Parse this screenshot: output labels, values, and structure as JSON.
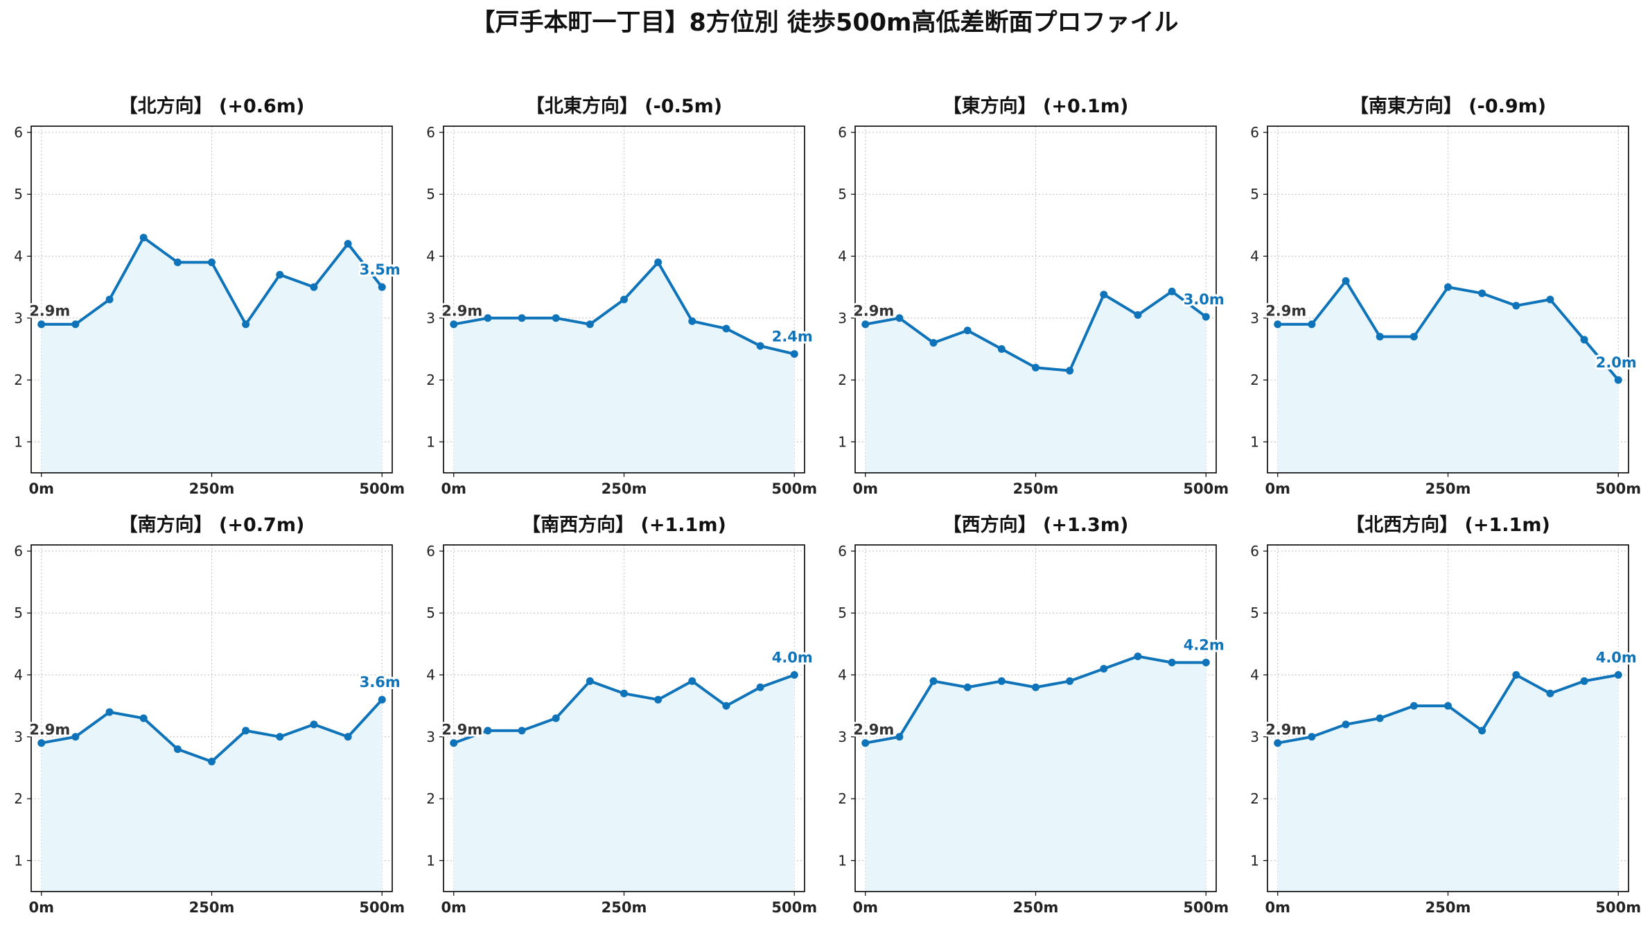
{
  "title": "【戸手本町一丁目】8方位別 徒歩500m高低差断面プロファイル",
  "colors": {
    "line": "#0e73b8",
    "fill": "#e8f6fc",
    "grid": "#c8c8c8"
  },
  "chart_data": [
    {
      "type": "area",
      "title": "【北方向】 (+0.6m)",
      "x": [
        0,
        50,
        100,
        150,
        200,
        250,
        300,
        350,
        400,
        450,
        500
      ],
      "y": [
        2.9,
        2.9,
        3.3,
        4.3,
        3.9,
        3.9,
        2.9,
        3.7,
        3.5,
        4.2,
        3.5
      ],
      "start_label": "2.9m",
      "end_label": "3.5m",
      "xticks": [
        "0m",
        "250m",
        "500m"
      ],
      "yticks": [
        "1",
        "2",
        "3",
        "4",
        "5",
        "6"
      ],
      "ylim": [
        0.5,
        6.1
      ],
      "xlim": [
        -15,
        515
      ],
      "grid": true
    },
    {
      "type": "area",
      "title": "【北東方向】 (-0.5m)",
      "x": [
        0,
        50,
        100,
        150,
        200,
        250,
        300,
        350,
        400,
        450,
        500
      ],
      "y": [
        2.9,
        3.0,
        3.0,
        3.0,
        2.9,
        3.3,
        3.9,
        2.95,
        2.83,
        2.55,
        2.42
      ],
      "start_label": "2.9m",
      "end_label": "2.4m",
      "xticks": [
        "0m",
        "250m",
        "500m"
      ],
      "yticks": [
        "1",
        "2",
        "3",
        "4",
        "5",
        "6"
      ],
      "ylim": [
        0.5,
        6.1
      ],
      "xlim": [
        -15,
        515
      ],
      "grid": true
    },
    {
      "type": "area",
      "title": "【東方向】 (+0.1m)",
      "x": [
        0,
        50,
        100,
        150,
        200,
        250,
        300,
        350,
        400,
        450,
        500
      ],
      "y": [
        2.9,
        3.0,
        2.6,
        2.8,
        2.5,
        2.2,
        2.15,
        3.38,
        3.05,
        3.43,
        3.02
      ],
      "start_label": "2.9m",
      "end_label": "3.0m",
      "xticks": [
        "0m",
        "250m",
        "500m"
      ],
      "yticks": [
        "1",
        "2",
        "3",
        "4",
        "5",
        "6"
      ],
      "ylim": [
        0.5,
        6.1
      ],
      "xlim": [
        -15,
        515
      ],
      "grid": true
    },
    {
      "type": "area",
      "title": "【南東方向】 (-0.9m)",
      "x": [
        0,
        50,
        100,
        150,
        200,
        250,
        300,
        350,
        400,
        450,
        500
      ],
      "y": [
        2.9,
        2.9,
        3.6,
        2.7,
        2.7,
        3.5,
        3.4,
        3.2,
        3.3,
        2.65,
        2.0
      ],
      "start_label": "2.9m",
      "end_label": "2.0m",
      "xticks": [
        "0m",
        "250m",
        "500m"
      ],
      "yticks": [
        "1",
        "2",
        "3",
        "4",
        "5",
        "6"
      ],
      "ylim": [
        0.5,
        6.1
      ],
      "xlim": [
        -15,
        515
      ],
      "grid": true
    },
    {
      "type": "area",
      "title": "【南方向】 (+0.7m)",
      "x": [
        0,
        50,
        100,
        150,
        200,
        250,
        300,
        350,
        400,
        450,
        500
      ],
      "y": [
        2.9,
        3.0,
        3.4,
        3.3,
        2.8,
        2.6,
        3.1,
        3.0,
        3.2,
        3.0,
        3.6
      ],
      "start_label": "2.9m",
      "end_label": "3.6m",
      "xticks": [
        "0m",
        "250m",
        "500m"
      ],
      "yticks": [
        "1",
        "2",
        "3",
        "4",
        "5",
        "6"
      ],
      "ylim": [
        0.5,
        6.1
      ],
      "xlim": [
        -15,
        515
      ],
      "grid": true
    },
    {
      "type": "area",
      "title": "【南西方向】 (+1.1m)",
      "x": [
        0,
        50,
        100,
        150,
        200,
        250,
        300,
        350,
        400,
        450,
        500
      ],
      "y": [
        2.9,
        3.1,
        3.1,
        3.3,
        3.9,
        3.7,
        3.6,
        3.9,
        3.5,
        3.8,
        4.0
      ],
      "start_label": "2.9m",
      "end_label": "4.0m",
      "xticks": [
        "0m",
        "250m",
        "500m"
      ],
      "yticks": [
        "1",
        "2",
        "3",
        "4",
        "5",
        "6"
      ],
      "ylim": [
        0.5,
        6.1
      ],
      "xlim": [
        -15,
        515
      ],
      "grid": true
    },
    {
      "type": "area",
      "title": "【西方向】 (+1.3m)",
      "x": [
        0,
        50,
        100,
        150,
        200,
        250,
        300,
        350,
        400,
        450,
        500
      ],
      "y": [
        2.9,
        3.0,
        3.9,
        3.8,
        3.9,
        3.8,
        3.9,
        4.1,
        4.3,
        4.2,
        4.2
      ],
      "start_label": "2.9m",
      "end_label": "4.2m",
      "xticks": [
        "0m",
        "250m",
        "500m"
      ],
      "yticks": [
        "1",
        "2",
        "3",
        "4",
        "5",
        "6"
      ],
      "ylim": [
        0.5,
        6.1
      ],
      "xlim": [
        -15,
        515
      ],
      "grid": true
    },
    {
      "type": "area",
      "title": "【北西方向】 (+1.1m)",
      "x": [
        0,
        50,
        100,
        150,
        200,
        250,
        300,
        350,
        400,
        450,
        500
      ],
      "y": [
        2.9,
        3.0,
        3.2,
        3.3,
        3.5,
        3.5,
        3.1,
        4.0,
        3.7,
        3.9,
        4.0
      ],
      "start_label": "2.9m",
      "end_label": "4.0m",
      "xticks": [
        "0m",
        "250m",
        "500m"
      ],
      "yticks": [
        "1",
        "2",
        "3",
        "4",
        "5",
        "6"
      ],
      "ylim": [
        0.5,
        6.1
      ],
      "xlim": [
        -15,
        515
      ],
      "grid": true
    }
  ]
}
